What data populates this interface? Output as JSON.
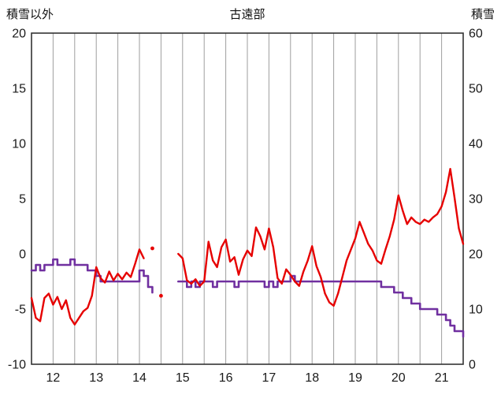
{
  "chart_data": {
    "type": "line",
    "title": "古遠部",
    "left_axis": {
      "label": "積雪以外",
      "range": [
        -10,
        20
      ],
      "ticks": [
        20,
        15,
        10,
        5,
        0,
        -5,
        -10
      ]
    },
    "right_axis": {
      "label": "積雪",
      "range": [
        0,
        60
      ],
      "ticks": [
        60,
        50,
        40,
        30,
        20,
        10,
        0
      ]
    },
    "x_range": [
      11.5,
      21.5
    ],
    "x_ticks": [
      12,
      13,
      14,
      15,
      16,
      17,
      18,
      19,
      20,
      21
    ],
    "grid_step_x": 0.5,
    "grid": "vertical-only",
    "legend": "none",
    "colors": {
      "grid": "#9e9e9e",
      "frame": "#333333",
      "text": "#1a1a1a",
      "background": "#ffffff"
    },
    "x": [
      11.5,
      11.6,
      11.7,
      11.8,
      11.9,
      12.0,
      12.1,
      12.2,
      12.3,
      12.4,
      12.5,
      12.6,
      12.7,
      12.8,
      12.9,
      13.0,
      13.1,
      13.2,
      13.3,
      13.4,
      13.5,
      13.6,
      13.7,
      13.8,
      13.9,
      14.0,
      14.1,
      14.2,
      14.3,
      14.4,
      14.5,
      14.6,
      14.7,
      14.8,
      14.9,
      15.0,
      15.1,
      15.2,
      15.3,
      15.4,
      15.5,
      15.6,
      15.7,
      15.8,
      15.9,
      16.0,
      16.1,
      16.2,
      16.3,
      16.4,
      16.5,
      16.6,
      16.7,
      16.8,
      16.9,
      17.0,
      17.1,
      17.2,
      17.3,
      17.4,
      17.5,
      17.6,
      17.7,
      17.8,
      17.9,
      18.0,
      18.1,
      18.2,
      18.3,
      18.4,
      18.5,
      18.6,
      18.7,
      18.8,
      18.9,
      19.0,
      19.1,
      19.2,
      19.3,
      19.4,
      19.5,
      19.6,
      19.7,
      19.8,
      19.9,
      20.0,
      20.1,
      20.2,
      20.3,
      20.4,
      20.5,
      20.6,
      20.7,
      20.8,
      20.9,
      21.0,
      21.1,
      21.2,
      21.3,
      21.4,
      21.5
    ],
    "series": [
      {
        "name": "積雪以外",
        "axis": "left",
        "color": "#e60000",
        "width": 2.4,
        "step": false,
        "values": [
          -4.0,
          -5.8,
          -6.1,
          -4.0,
          -3.6,
          -4.6,
          -3.9,
          -5.0,
          -4.2,
          -5.8,
          -6.4,
          -5.8,
          -5.2,
          -4.9,
          -3.8,
          -1.2,
          -2.2,
          -2.6,
          -1.6,
          -2.4,
          -1.8,
          -2.3,
          -1.7,
          -2.1,
          -0.9,
          0.4,
          -0.4,
          null,
          0.5,
          null,
          -3.8,
          null,
          null,
          null,
          0.0,
          -0.4,
          -2.4,
          -2.7,
          -2.3,
          -2.9,
          -2.5,
          1.1,
          -0.6,
          -1.2,
          0.6,
          1.3,
          -0.7,
          -0.3,
          -1.9,
          -0.5,
          0.3,
          -0.2,
          2.4,
          1.6,
          0.4,
          2.3,
          0.6,
          -2.2,
          -2.7,
          -1.4,
          -1.9,
          -2.5,
          -2.9,
          -1.6,
          -0.6,
          0.7,
          -1.1,
          -2.1,
          -3.6,
          -4.4,
          -4.7,
          -3.6,
          -2.1,
          -0.6,
          0.4,
          1.4,
          2.9,
          1.9,
          0.9,
          0.3,
          -0.6,
          -0.9,
          0.4,
          1.6,
          3.1,
          5.3,
          3.9,
          2.7,
          3.3,
          2.9,
          2.7,
          3.1,
          2.9,
          3.3,
          3.6,
          4.3,
          5.6,
          7.7,
          5.1,
          2.3,
          0.9
        ]
      },
      {
        "name": "積雪",
        "axis": "right",
        "color": "#7030a0",
        "width": 2.6,
        "step": true,
        "values": [
          17,
          18,
          17,
          18,
          18,
          19,
          18,
          18,
          18,
          19,
          18,
          18,
          18,
          17,
          17,
          16,
          15,
          15,
          15,
          15,
          15,
          15,
          15,
          15,
          15,
          17,
          16,
          14,
          13,
          null,
          null,
          null,
          null,
          null,
          15,
          15,
          14,
          15,
          14,
          15,
          15,
          15,
          14,
          15,
          15,
          15,
          15,
          14,
          15,
          15,
          15,
          15,
          15,
          15,
          14,
          15,
          14,
          15,
          15,
          15,
          16,
          15,
          15,
          15,
          15,
          15,
          15,
          15,
          15,
          15,
          15,
          15,
          15,
          15,
          15,
          15,
          15,
          15,
          15,
          15,
          15,
          14,
          14,
          14,
          13,
          13,
          12,
          12,
          11,
          11,
          10,
          10,
          10,
          10,
          9,
          9,
          8,
          7,
          6,
          6,
          5
        ]
      }
    ]
  }
}
